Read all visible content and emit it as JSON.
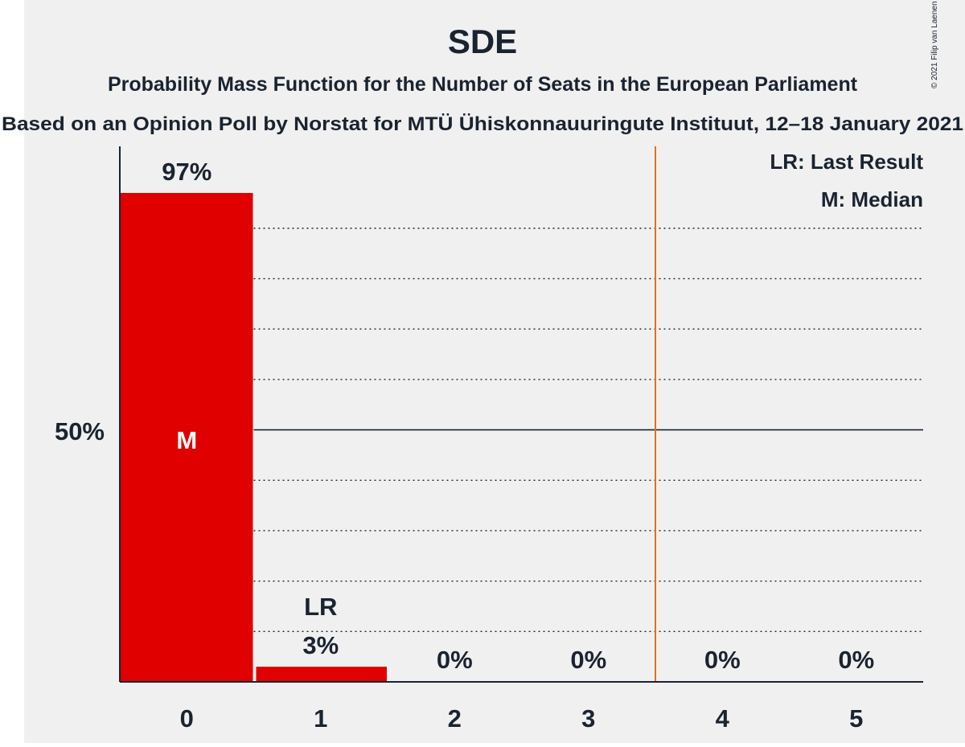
{
  "chart_data": {
    "type": "bar",
    "title": "SDE",
    "subtitle": "Probability Mass Function for the Number of Seats in the European Parliament",
    "subtitle2": "Based on an Opinion Poll by Norstat for MTÜ Ühiskonnauuringute Instituut, 12–18 January 2021",
    "copyright": "© 2021 Filip van Laenen",
    "categories": [
      "0",
      "1",
      "2",
      "3",
      "4",
      "5"
    ],
    "values": [
      97,
      3,
      0,
      0,
      0,
      0
    ],
    "value_labels": [
      "97%",
      "3%",
      "0%",
      "0%",
      "0%",
      "0%"
    ],
    "ylim": [
      0,
      106
    ],
    "y_tick_value": 50,
    "y_tick_label": "50%",
    "gridlines": [
      10,
      20,
      30,
      40,
      50,
      60,
      70,
      80,
      90
    ],
    "median_index": 0,
    "median_marker": "M",
    "last_result_index": 1,
    "last_result_marker": "LR",
    "threshold_between": [
      3,
      4
    ],
    "legend": {
      "position": "top-right",
      "items": [
        "LR: Last Result",
        "M: Median"
      ]
    },
    "colors": {
      "background": "#f0f0f0",
      "bar": "#e00000",
      "text": "#1a2330",
      "axis": "#1a2330",
      "threshold": "#e0701a",
      "median_text": "#ffffff"
    }
  }
}
